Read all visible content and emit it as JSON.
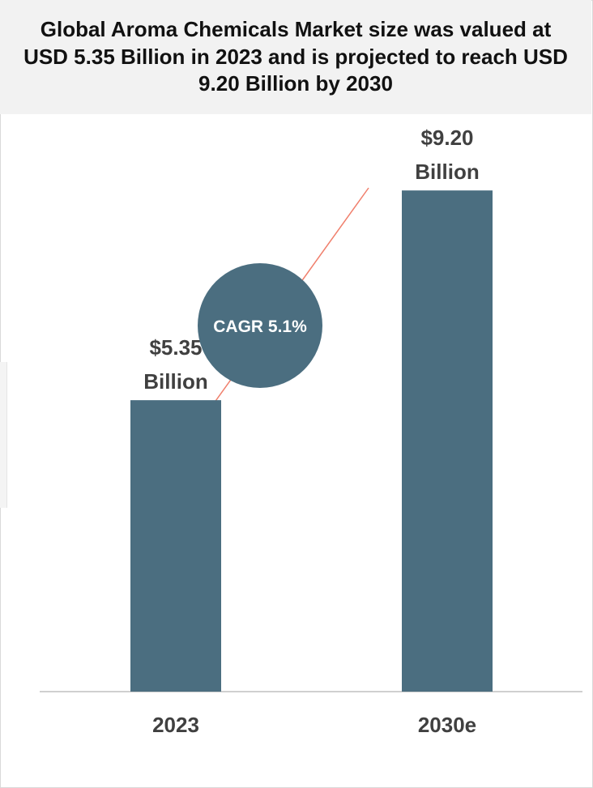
{
  "chart_data": {
    "type": "bar",
    "title": "Global Aroma Chemicals Market size was valued at USD 5.35 Billion in 2023 and is projected to reach USD 9.20 Billion by 2030",
    "categories": [
      "2023",
      "2030e"
    ],
    "values": [
      5.35,
      9.2
    ],
    "value_labels": [
      [
        "$5.35",
        "Billion"
      ],
      [
        "$9.20",
        "Billion"
      ]
    ],
    "annotation": "CAGR 5.1%",
    "xlabel": "",
    "ylabel": "",
    "ylim": [
      0,
      10.6
    ],
    "grid": false,
    "legend": "none",
    "colors": {
      "bar": "#4b6e80",
      "circle": "#4b6e80",
      "trend_line": "#f07f6c",
      "axis": "#bfbfbf",
      "label": "#404040"
    }
  }
}
